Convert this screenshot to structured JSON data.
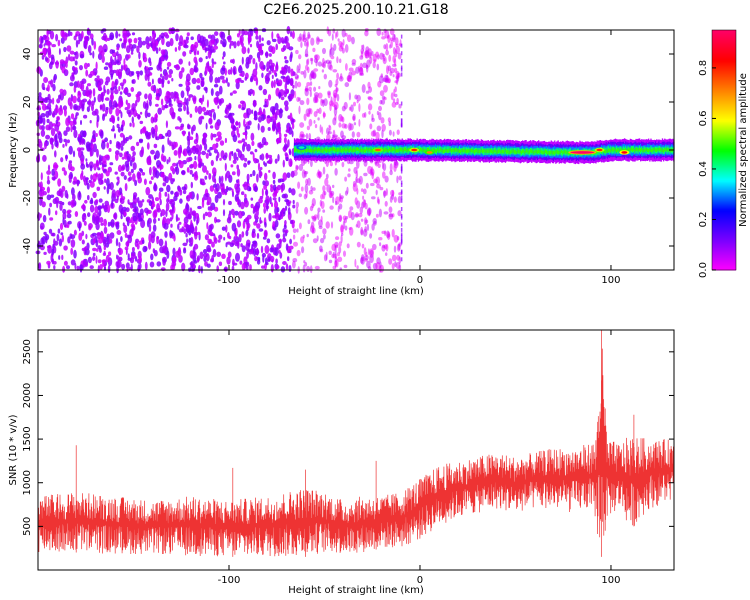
{
  "title": "C2E6.2025.200.10.21.G18",
  "colors": {
    "snr_line": "#ee3333",
    "frame": "#000000"
  },
  "chart_data": [
    {
      "type": "heatmap",
      "xlabel": "Height of straight line (km)",
      "ylabel": "Frequency (Hz)",
      "xlim": [
        -200,
        133
      ],
      "ylim": [
        -50,
        50
      ],
      "xticks": [
        -100,
        0,
        100
      ],
      "yticks": [
        -40,
        -20,
        0,
        20,
        40
      ],
      "colorbar": {
        "label": "Normalized spectral amplitude",
        "range": [
          0,
          0.95
        ],
        "ticks": [
          0.0,
          0.2,
          0.4,
          0.6,
          0.8
        ],
        "colormap": [
          "#ff00ff",
          "#7a00ff",
          "#0000ff",
          "#00ffff",
          "#00ff00",
          "#ffff00",
          "#ff8000",
          "#ff0000",
          "#ff0066"
        ]
      },
      "description_regions": [
        {
          "x_range": [
            -200,
            -66
          ],
          "freq_range": [
            -50,
            50
          ],
          "amplitude": 0.08,
          "pattern": "dense noise"
        },
        {
          "x_range": [
            -66,
            -10
          ],
          "freq_range": [
            -50,
            50
          ],
          "amplitude": 0.03,
          "pattern": "sparse noise"
        },
        {
          "x_range": [
            -66,
            133
          ],
          "freq_range": [
            -3,
            3
          ],
          "amplitude": 0.35,
          "pattern": "signal band"
        }
      ],
      "signal_band": {
        "center_freq": [
          [
            -66,
            0
          ],
          [
            -40,
            0
          ],
          [
            0,
            0
          ],
          [
            80,
            -1
          ],
          [
            90,
            -1
          ],
          [
            100,
            0
          ],
          [
            133,
            0
          ]
        ],
        "hotspots": [
          {
            "x": -62,
            "freq": 1,
            "amplitude": 0.4
          },
          {
            "x": -22,
            "freq": 0,
            "amplitude": 0.75
          },
          {
            "x": -3,
            "freq": 0,
            "amplitude": 0.8
          },
          {
            "x": 5,
            "freq": -1,
            "amplitude": 0.7
          },
          {
            "x": 85,
            "freq": -1,
            "amplitude": 0.95
          },
          {
            "x": 94,
            "freq": 0,
            "amplitude": 0.8
          },
          {
            "x": 107,
            "freq": -1,
            "amplitude": 0.85
          }
        ]
      }
    },
    {
      "type": "line",
      "xlabel": "Height of straight line (km)",
      "ylabel": "SNR (10 * v/v)",
      "xlim": [
        -200,
        133
      ],
      "ylim": [
        0,
        2750
      ],
      "xticks": [
        -100,
        0,
        100
      ],
      "yticks": [
        500,
        1000,
        1500,
        2000,
        2500
      ],
      "envelope": {
        "x": [
          -200,
          -180,
          -160,
          -140,
          -120,
          -100,
          -80,
          -60,
          -50,
          -40,
          -30,
          -20,
          -10,
          0,
          10,
          20,
          30,
          40,
          50,
          60,
          70,
          80,
          88,
          92,
          95,
          98,
          105,
          110,
          120,
          133
        ],
        "lower": [
          200,
          200,
          180,
          180,
          160,
          150,
          150,
          150,
          200,
          180,
          200,
          250,
          250,
          350,
          500,
          600,
          650,
          700,
          650,
          700,
          700,
          650,
          700,
          500,
          150,
          600,
          700,
          450,
          700,
          800
        ],
        "upper": [
          850,
          900,
          850,
          800,
          850,
          800,
          850,
          950,
          900,
          800,
          850,
          850,
          900,
          1050,
          1200,
          1250,
          1300,
          1350,
          1300,
          1350,
          1400,
          1400,
          1450,
          1500,
          2750,
          1500,
          1450,
          1550,
          1500,
          1500
        ]
      },
      "spikes": [
        {
          "x": -180,
          "y": 1430
        },
        {
          "x": -98,
          "y": 1170
        },
        {
          "x": -60,
          "y": 1150
        },
        {
          "x": -23,
          "y": 1250
        },
        {
          "x": 95,
          "y": 2750
        },
        {
          "x": 97,
          "y": 1850
        },
        {
          "x": 112,
          "y": 1780
        }
      ]
    }
  ]
}
